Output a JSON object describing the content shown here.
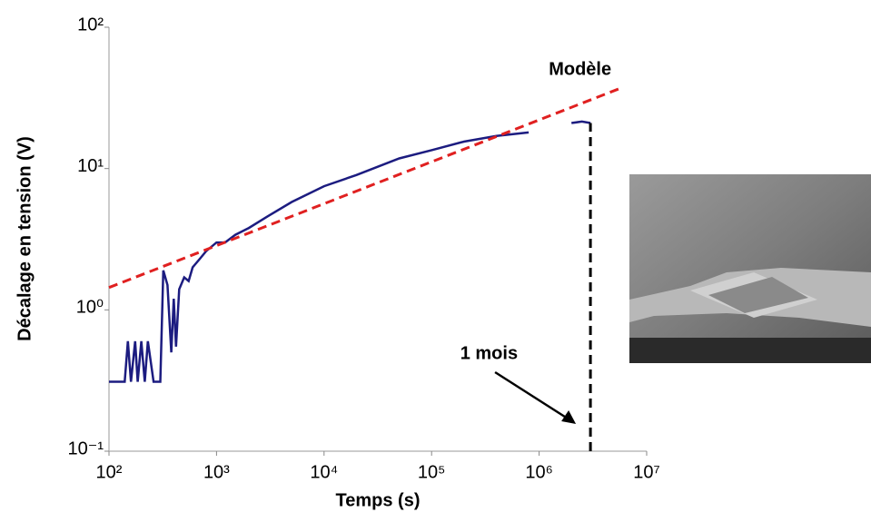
{
  "chart_data": {
    "type": "line",
    "x_label": "Temps (s)",
    "y_label": "Décalage en tension (V)",
    "xscale": "log",
    "yscale": "log",
    "xlim": [
      100,
      10000000
    ],
    "ylim": [
      0.1,
      100
    ],
    "xticks": [
      {
        "value": 100,
        "label": "10²"
      },
      {
        "value": 1000,
        "label": "10³"
      },
      {
        "value": 10000,
        "label": "10⁴"
      },
      {
        "value": 100000,
        "label": "10⁵"
      },
      {
        "value": 1000000,
        "label": "10⁶"
      },
      {
        "value": 10000000,
        "label": "10⁷"
      }
    ],
    "yticks": [
      {
        "value": 0.1,
        "label": "10⁻¹"
      },
      {
        "value": 1,
        "label": "10⁰"
      },
      {
        "value": 10,
        "label": "10¹"
      },
      {
        "value": 100,
        "label": "10²"
      }
    ],
    "grid": false,
    "series": [
      {
        "color": "#1c1c80",
        "dashed": false,
        "x": [
          100,
          140,
          150,
          160,
          175,
          185,
          200,
          215,
          230,
          260,
          300,
          320,
          350,
          380,
          400,
          420,
          450,
          500,
          550,
          600,
          700,
          800,
          1000,
          1200,
          1500,
          2000,
          3000,
          5000,
          10000,
          20000,
          50000,
          100000,
          200000,
          400000,
          800000,
          1500000,
          2000000,
          2500000,
          3000000
        ],
        "values": [
          0.31,
          0.31,
          0.6,
          0.31,
          0.6,
          0.31,
          0.6,
          0.31,
          0.6,
          0.31,
          0.31,
          1.9,
          1.5,
          0.5,
          1.2,
          0.55,
          1.4,
          1.7,
          1.6,
          2.0,
          2.3,
          2.6,
          3.0,
          3.0,
          3.4,
          3.8,
          4.6,
          5.8,
          7.5,
          9.0,
          11.8,
          13.5,
          15.5,
          17,
          18,
          null,
          21,
          21.5,
          21
        ]
      },
      {
        "name": "Modèle",
        "color": "#e02020",
        "dashed": true,
        "x": [
          100,
          5700000
        ],
        "values": [
          1.44,
          37
        ]
      }
    ],
    "month_marker": {
      "x": 3000000,
      "y_top": 21,
      "label": "1 mois"
    }
  }
}
